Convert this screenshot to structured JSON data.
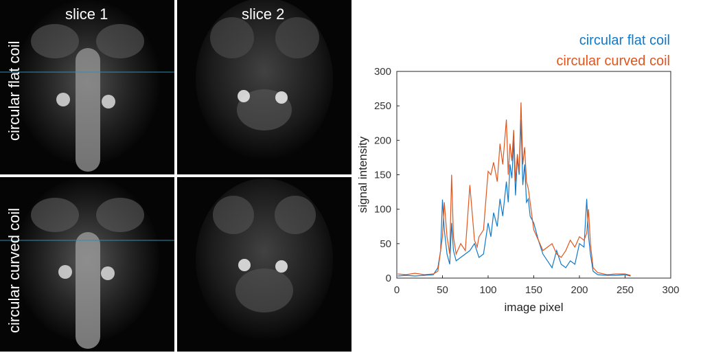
{
  "colors": {
    "flat": "#0f78c8",
    "curved": "#e0551c",
    "line": "#2f8fb0"
  },
  "mri": {
    "columns": [
      "slice 1",
      "slice 2"
    ],
    "rows": [
      "circular flat coil",
      "circular curved coil"
    ]
  },
  "chart_data": {
    "type": "line",
    "xlabel": "image pixel",
    "ylabel": "signal intensity",
    "xlim": [
      0,
      300
    ],
    "ylim": [
      0,
      300
    ],
    "xticks": [
      0,
      50,
      100,
      150,
      200,
      250,
      300
    ],
    "yticks": [
      0,
      50,
      100,
      150,
      200,
      250,
      300
    ],
    "legend_position": "top-right",
    "series": [
      {
        "name": "circular flat coil",
        "x": [
          1,
          10,
          20,
          30,
          40,
          45,
          48,
          50,
          52,
          55,
          58,
          60,
          62,
          65,
          70,
          75,
          80,
          85,
          90,
          95,
          100,
          103,
          106,
          110,
          113,
          116,
          120,
          122,
          124,
          126,
          128,
          130,
          132,
          134,
          136,
          138,
          140,
          142,
          144,
          146,
          148,
          150,
          155,
          160,
          165,
          170,
          175,
          180,
          185,
          190,
          195,
          200,
          205,
          208,
          210,
          212,
          215,
          220,
          230,
          240,
          250,
          256
        ],
        "y": [
          3,
          4,
          3,
          4,
          5,
          15,
          40,
          114,
          70,
          35,
          20,
          80,
          40,
          25,
          30,
          35,
          40,
          50,
          30,
          35,
          80,
          60,
          95,
          75,
          115,
          90,
          140,
          110,
          165,
          145,
          200,
          120,
          175,
          150,
          230,
          135,
          165,
          110,
          115,
          90,
          85,
          80,
          55,
          35,
          25,
          15,
          40,
          20,
          15,
          25,
          20,
          50,
          45,
          115,
          60,
          35,
          10,
          5,
          4,
          4,
          5,
          3
        ]
      },
      {
        "name": "circular curved coil",
        "x": [
          1,
          10,
          20,
          30,
          40,
          45,
          50,
          52,
          55,
          58,
          60,
          62,
          65,
          70,
          75,
          80,
          85,
          88,
          90,
          95,
          100,
          103,
          106,
          110,
          113,
          116,
          120,
          122,
          124,
          126,
          128,
          130,
          132,
          134,
          136,
          138,
          140,
          142,
          144,
          146,
          148,
          150,
          155,
          160,
          165,
          170,
          175,
          180,
          185,
          190,
          195,
          200,
          205,
          208,
          210,
          212,
          215,
          220,
          230,
          240,
          250,
          256
        ],
        "y": [
          6,
          5,
          7,
          5,
          6,
          10,
          60,
          110,
          60,
          35,
          150,
          60,
          35,
          50,
          40,
          135,
          55,
          45,
          60,
          70,
          155,
          150,
          168,
          140,
          195,
          165,
          230,
          150,
          195,
          170,
          215,
          140,
          180,
          155,
          255,
          165,
          190,
          140,
          130,
          110,
          90,
          70,
          55,
          40,
          45,
          50,
          35,
          30,
          40,
          55,
          45,
          60,
          55,
          65,
          100,
          50,
          15,
          8,
          5,
          6,
          6,
          4
        ]
      }
    ]
  }
}
